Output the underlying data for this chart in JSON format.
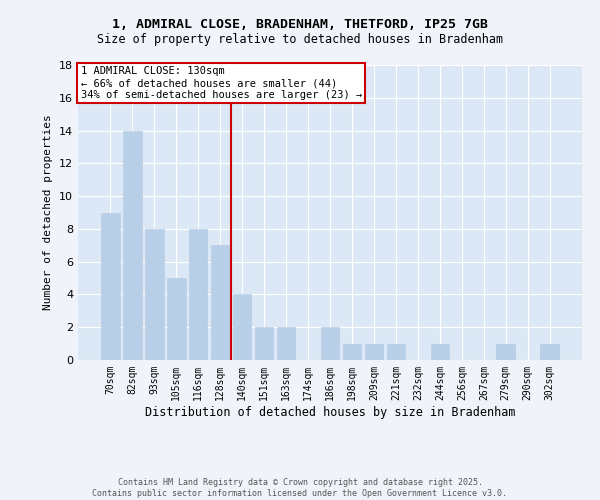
{
  "title_line1": "1, ADMIRAL CLOSE, BRADENHAM, THETFORD, IP25 7GB",
  "title_line2": "Size of property relative to detached houses in Bradenham",
  "xlabel": "Distribution of detached houses by size in Bradenham",
  "ylabel": "Number of detached properties",
  "bar_labels": [
    "70sqm",
    "82sqm",
    "93sqm",
    "105sqm",
    "116sqm",
    "128sqm",
    "140sqm",
    "151sqm",
    "163sqm",
    "174sqm",
    "186sqm",
    "198sqm",
    "209sqm",
    "221sqm",
    "232sqm",
    "244sqm",
    "256sqm",
    "267sqm",
    "279sqm",
    "290sqm",
    "302sqm"
  ],
  "bar_values": [
    9,
    14,
    8,
    5,
    8,
    7,
    4,
    2,
    2,
    0,
    2,
    1,
    1,
    1,
    0,
    1,
    0,
    0,
    1,
    0,
    1
  ],
  "bar_color": "#b8cfe8",
  "bar_edgecolor": "#b8cfe8",
  "vline_x": 5.5,
  "vline_color": "#cc0000",
  "annotation_title": "1 ADMIRAL CLOSE: 130sqm",
  "annotation_line1": "← 66% of detached houses are smaller (44)",
  "annotation_line2": "34% of semi-detached houses are larger (23) →",
  "annotation_box_color": "#cc0000",
  "ylim": [
    0,
    18
  ],
  "yticks": [
    0,
    2,
    4,
    6,
    8,
    10,
    12,
    14,
    16,
    18
  ],
  "fig_bg_color": "#f0f4fa",
  "plot_bg_color": "#dce8f5",
  "grid_color": "#ffffff",
  "footer_line1": "Contains HM Land Registry data © Crown copyright and database right 2025.",
  "footer_line2": "Contains public sector information licensed under the Open Government Licence v3.0."
}
